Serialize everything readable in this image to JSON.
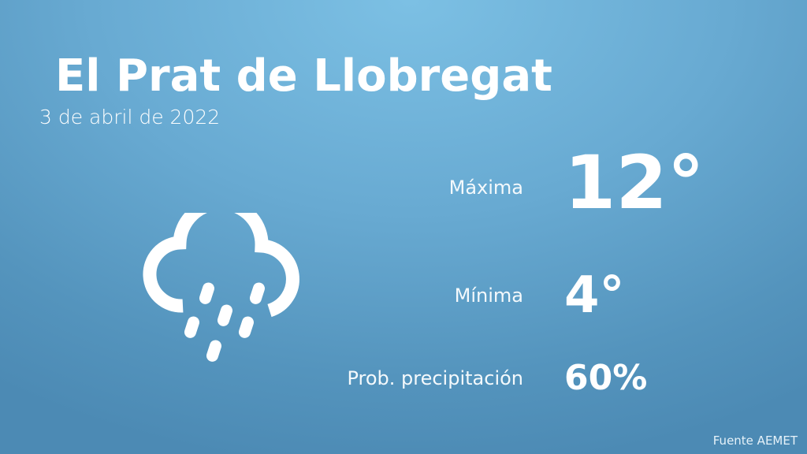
{
  "city": "El Prat de Llobregat",
  "date": "3 de abril de 2022",
  "weather_icon": "rain-cloud-icon",
  "max": {
    "label": "Máxima",
    "value": "12°"
  },
  "min": {
    "label": "Mínima",
    "value": "4°"
  },
  "precip": {
    "label": "Prob. precipitación",
    "value": "60%"
  },
  "source": "Fuente AEMET",
  "colors": {
    "background_top": "#7cc0e4",
    "background_bottom": "#4c8ab4",
    "text": "#ffffff"
  }
}
